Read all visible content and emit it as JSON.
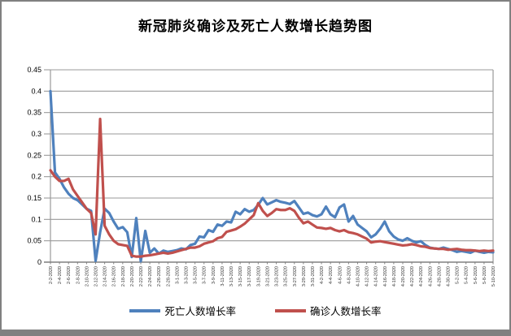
{
  "window": {
    "frame_border_color": "#808080",
    "bottom_bar_color": "#808080",
    "background_color": "#ffffff"
  },
  "chart_data": {
    "type": "line",
    "title": "新冠肺炎确诊及死亡人数增长趋势图",
    "xlabel": "",
    "ylabel": "",
    "ylim": [
      0,
      0.45
    ],
    "y_tick_labels": [
      "0",
      "0.05",
      "0.1",
      "0.15",
      "0.2",
      "0.25",
      "0.3",
      "0.35",
      "0.4",
      "0.45"
    ],
    "grid": true,
    "gridline_color": "#9a9a9a",
    "axis_color": "#808080",
    "x_label_rotation": -90,
    "x_tick_step": 2,
    "legend_position": "bottom",
    "x": [
      "2-2-2020",
      "2-3-2020",
      "2-4-2020",
      "2-5-2020",
      "2-6-2020",
      "2-7-2020",
      "2-8-2020",
      "2-9-2020",
      "2-10-2020",
      "2-11-2020",
      "2-12-2020",
      "2-13-2020",
      "2-14-2020",
      "2-15-2020",
      "2-16-2020",
      "2-17-2020",
      "2-18-2020",
      "2-19-2020",
      "2-20-2020",
      "2-21-2020",
      "2-22-2020",
      "2-23-2020",
      "2-24-2020",
      "2-25-2020",
      "2-26-2020",
      "2-27-2020",
      "2-28-2020",
      "2-29-2020",
      "3-1-2020",
      "3-2-2020",
      "3-3-2020",
      "3-4-2020",
      "3-5-2020",
      "3-6-2020",
      "3-7-2020",
      "3-8-2020",
      "3-9-2020",
      "3-10-2020",
      "3-11-2020",
      "3-12-2020",
      "3-13-2020",
      "3-14-2020",
      "3-15-2020",
      "3-16-2020",
      "3-17-2020",
      "3-18-2020",
      "3-19-2020",
      "3-20-2020",
      "3-21-2020",
      "3-22-2020",
      "3-23-2020",
      "3-24-2020",
      "3-25-2020",
      "3-26-2020",
      "3-27-2020",
      "3-28-2020",
      "3-29-2020",
      "3-30-2020",
      "3-31-2020",
      "4-1-2020",
      "4-2-2020",
      "4-3-2020",
      "4-4-2020",
      "4-5-2020",
      "4-6-2020",
      "4-7-2020",
      "4-8-2020",
      "4-9-2020",
      "4-10-2020",
      "4-11-2020",
      "4-12-2020",
      "4-13-2020",
      "4-14-2020",
      "4-15-2020",
      "4-16-2020",
      "4-17-2020",
      "4-18-2020",
      "4-19-2020",
      "4-20-2020",
      "4-21-2020",
      "4-22-2020",
      "4-23-2020",
      "4-24-2020",
      "4-25-2020",
      "4-26-2020",
      "4-27-2020",
      "4-28-2020",
      "4-29-2020",
      "4-30-2020",
      "5-1-2020",
      "5-2-2020",
      "5-3-2020",
      "5-4-2020",
      "5-5-2020",
      "5-6-2020",
      "5-7-2020",
      "5-8-2020",
      "5-9-2020",
      "5-10-2020"
    ],
    "series": [
      {
        "name": "死亡人数增长率",
        "color": "#4F81BD",
        "values": [
          0.4,
          0.21,
          0.195,
          0.175,
          0.16,
          0.15,
          0.145,
          0.135,
          0.125,
          0.12,
          0.003,
          0.07,
          0.125,
          0.115,
          0.095,
          0.078,
          0.082,
          0.07,
          0.012,
          0.103,
          0.002,
          0.073,
          0.022,
          0.032,
          0.02,
          0.027,
          0.024,
          0.026,
          0.028,
          0.032,
          0.03,
          0.04,
          0.043,
          0.06,
          0.058,
          0.075,
          0.071,
          0.088,
          0.085,
          0.095,
          0.093,
          0.118,
          0.112,
          0.124,
          0.118,
          0.122,
          0.134,
          0.15,
          0.135,
          0.14,
          0.145,
          0.141,
          0.139,
          0.136,
          0.143,
          0.128,
          0.113,
          0.116,
          0.11,
          0.107,
          0.112,
          0.13,
          0.112,
          0.105,
          0.128,
          0.135,
          0.095,
          0.108,
          0.088,
          0.08,
          0.072,
          0.058,
          0.065,
          0.078,
          0.095,
          0.072,
          0.06,
          0.053,
          0.05,
          0.056,
          0.05,
          0.046,
          0.049,
          0.04,
          0.034,
          0.032,
          0.031,
          0.034,
          0.031,
          0.028,
          0.024,
          0.026,
          0.024,
          0.022,
          0.027,
          0.024,
          0.022,
          0.024,
          0.023
        ]
      },
      {
        "name": "确诊人数增长率",
        "color": "#C0504D",
        "values": [
          0.215,
          0.2,
          0.19,
          0.19,
          0.195,
          0.17,
          0.155,
          0.14,
          0.125,
          0.115,
          0.065,
          0.335,
          0.085,
          0.065,
          0.05,
          0.042,
          0.04,
          0.038,
          0.015,
          0.013,
          0.013,
          0.015,
          0.016,
          0.018,
          0.02,
          0.022,
          0.02,
          0.022,
          0.025,
          0.028,
          0.031,
          0.034,
          0.034,
          0.037,
          0.043,
          0.046,
          0.049,
          0.056,
          0.059,
          0.071,
          0.074,
          0.077,
          0.083,
          0.09,
          0.1,
          0.11,
          0.138,
          0.12,
          0.108,
          0.115,
          0.124,
          0.122,
          0.122,
          0.126,
          0.12,
          0.104,
          0.091,
          0.095,
          0.088,
          0.081,
          0.08,
          0.078,
          0.08,
          0.075,
          0.072,
          0.075,
          0.07,
          0.068,
          0.065,
          0.06,
          0.055,
          0.046,
          0.048,
          0.049,
          0.047,
          0.045,
          0.043,
          0.041,
          0.039,
          0.04,
          0.042,
          0.04,
          0.037,
          0.036,
          0.033,
          0.032,
          0.031,
          0.031,
          0.029,
          0.03,
          0.031,
          0.029,
          0.028,
          0.028,
          0.027,
          0.026,
          0.027,
          0.026,
          0.027
        ]
      }
    ]
  }
}
